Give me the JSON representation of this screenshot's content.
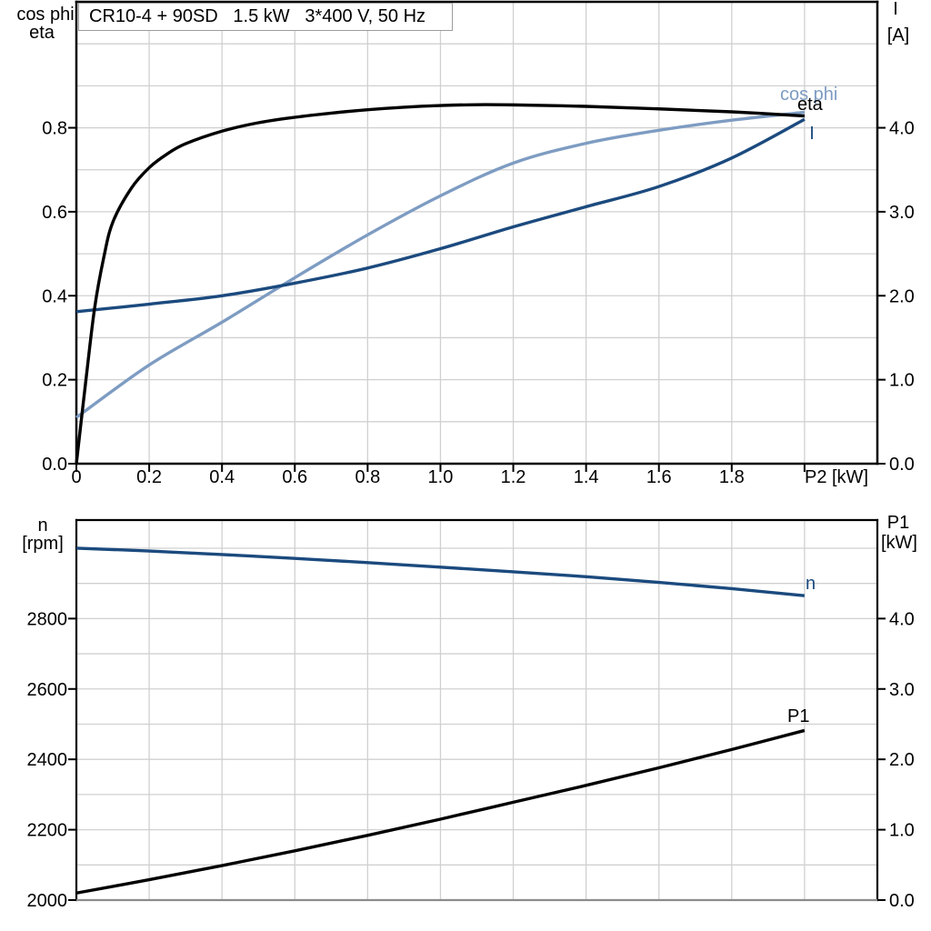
{
  "title_box": {
    "text": "CR10-4 + 90SD   1.5 kW   3*400 V, 50 Hz",
    "parts": [
      "CR10-4 + 90SD",
      "1.5 kW",
      "3*400 V, 50 Hz"
    ]
  },
  "colors": {
    "black": "#000000",
    "light_blue": "#7E9CC2",
    "dark_blue": "#1B4A7E",
    "grid": "#D0D0D0",
    "box_border": "#9C9C9C",
    "bottom_axis_gray": "#8C8C8C"
  },
  "chart_data": [
    {
      "type": "line",
      "x_axis": {
        "label": "P2 [kW]",
        "min": 0,
        "max": 2.2,
        "grid_step": 0.2,
        "tick_values": [
          0,
          0.2,
          0.4,
          0.6,
          0.8,
          1.0,
          1.2,
          1.4,
          1.6,
          1.8,
          2.0
        ],
        "tick_labels": [
          "0",
          "0.2",
          "0.4",
          "0.6",
          "0.8",
          "1.0",
          "1.2",
          "1.4",
          "1.6",
          "1.8",
          ""
        ]
      },
      "left_axis": {
        "title_lines": [
          "cos phi",
          "eta"
        ],
        "min": 0,
        "max": 1.1,
        "grid_step": 0.1,
        "tick_values": [
          0,
          0.2,
          0.4,
          0.6,
          0.8
        ],
        "tick_labels": [
          "0.0",
          "0.2",
          "0.4",
          "0.6",
          "0.8"
        ]
      },
      "right_axis": {
        "title_lines": [
          "I",
          "[A]"
        ],
        "min": 0,
        "max": 5.5,
        "tick_values": [
          0,
          1,
          2,
          3,
          4
        ],
        "tick_labels": [
          "0.0",
          "1.0",
          "2.0",
          "3.0",
          "4.0"
        ]
      },
      "series": [
        {
          "name": "cos phi",
          "axis": "left",
          "color_key": "light_blue",
          "label": {
            "text": "cos phi",
            "x": 858,
            "y": 110,
            "anchor": "start"
          },
          "points": [
            [
              0,
              0.11
            ],
            [
              0.2,
              0.235
            ],
            [
              0.4,
              0.337
            ],
            [
              0.6,
              0.443
            ],
            [
              0.8,
              0.545
            ],
            [
              1.0,
              0.638
            ],
            [
              1.2,
              0.716
            ],
            [
              1.4,
              0.763
            ],
            [
              1.6,
              0.794
            ],
            [
              1.8,
              0.818
            ],
            [
              2.0,
              0.837
            ]
          ]
        },
        {
          "name": "I",
          "axis": "right",
          "color_key": "dark_blue",
          "label": {
            "text": "I",
            "x": 893,
            "y": 153,
            "anchor": "middle"
          },
          "points": [
            [
              0,
              1.81
            ],
            [
              0.2,
              1.9
            ],
            [
              0.4,
              2.0
            ],
            [
              0.6,
              2.15
            ],
            [
              0.8,
              2.33
            ],
            [
              1.0,
              2.56
            ],
            [
              1.2,
              2.82
            ],
            [
              1.4,
              3.06
            ],
            [
              1.6,
              3.3
            ],
            [
              1.8,
              3.64
            ],
            [
              2.0,
              4.1
            ]
          ]
        },
        {
          "name": "eta",
          "axis": "left",
          "color_key": "black",
          "label": {
            "text": "eta",
            "x": 877,
            "y": 121,
            "anchor": "start"
          },
          "points": [
            [
              0,
              0
            ],
            [
              0.025,
              0.19
            ],
            [
              0.05,
              0.37
            ],
            [
              0.075,
              0.49
            ],
            [
              0.1,
              0.575
            ],
            [
              0.15,
              0.655
            ],
            [
              0.2,
              0.705
            ],
            [
              0.25,
              0.738
            ],
            [
              0.3,
              0.762
            ],
            [
              0.4,
              0.792
            ],
            [
              0.5,
              0.812
            ],
            [
              0.6,
              0.825
            ],
            [
              0.7,
              0.835
            ],
            [
              0.8,
              0.843
            ],
            [
              0.9,
              0.849
            ],
            [
              1.0,
              0.853
            ],
            [
              1.1,
              0.855
            ],
            [
              1.2,
              0.8545
            ],
            [
              1.4,
              0.851
            ],
            [
              1.6,
              0.845
            ],
            [
              1.8,
              0.838
            ],
            [
              2.0,
              0.828
            ]
          ]
        }
      ]
    },
    {
      "type": "line",
      "x_axis": {
        "label": null,
        "min": 0,
        "max": 2.2,
        "grid_step": 0.2,
        "tick_values": [],
        "tick_labels": []
      },
      "left_axis": {
        "title_lines": [
          "n",
          "[rpm]"
        ],
        "min": 2000,
        "max": 3080,
        "grid_step": 100,
        "tick_values": [
          2000,
          2200,
          2400,
          2600,
          2800
        ],
        "tick_labels": [
          "2000",
          "2200",
          "2400",
          "2600",
          "2800"
        ]
      },
      "right_axis": {
        "title_lines": [
          "P1",
          "[kW]"
        ],
        "min": 0,
        "max": 5.4,
        "tick_values": [
          0,
          1,
          2,
          3,
          4
        ],
        "tick_labels": [
          "0.0",
          "1.0",
          "2.0",
          "3.0",
          "4.0"
        ]
      },
      "series": [
        {
          "name": "n",
          "axis": "left",
          "color_key": "dark_blue",
          "label": {
            "text": "n",
            "x": 886,
            "y": 648,
            "anchor": "start"
          },
          "points": [
            [
              0,
              3000
            ],
            [
              0.2,
              2992
            ],
            [
              0.4,
              2982
            ],
            [
              0.6,
              2971
            ],
            [
              0.8,
              2959
            ],
            [
              1.0,
              2946
            ],
            [
              1.2,
              2933
            ],
            [
              1.4,
              2919
            ],
            [
              1.6,
              2903
            ],
            [
              1.8,
              2885
            ],
            [
              2.0,
              2865
            ]
          ]
        },
        {
          "name": "P1",
          "axis": "right",
          "color_key": "black",
          "label": {
            "text": "P1",
            "x": 866,
            "y": 794,
            "anchor": "start"
          },
          "points": [
            [
              0,
              0.1
            ],
            [
              0.2,
              0.29
            ],
            [
              0.4,
              0.49
            ],
            [
              0.6,
              0.7
            ],
            [
              0.8,
              0.92
            ],
            [
              1.0,
              1.15
            ],
            [
              1.2,
              1.39
            ],
            [
              1.4,
              1.63
            ],
            [
              1.6,
              1.88
            ],
            [
              1.8,
              2.14
            ],
            [
              2.0,
              2.41
            ]
          ]
        }
      ]
    }
  ]
}
